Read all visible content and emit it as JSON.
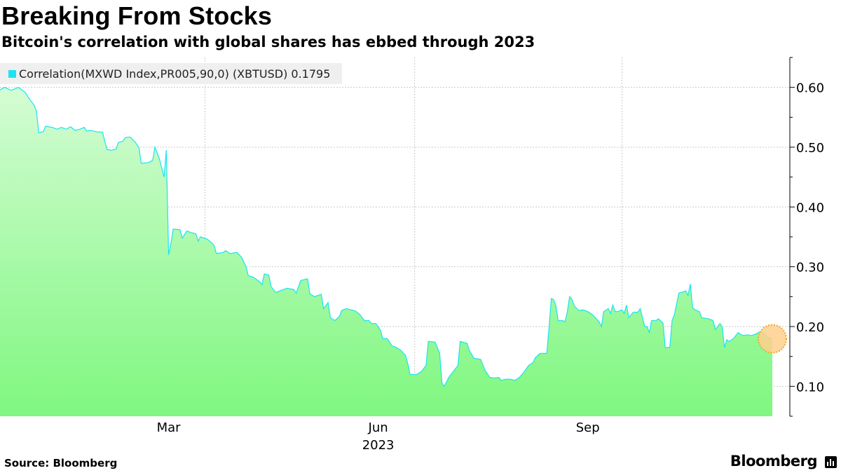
{
  "header": {
    "title": "Breaking From Stocks",
    "subtitle": "Bitcoin's correlation with global shares has ebbed through 2023"
  },
  "legend": {
    "label": "Correlation(MXWD Index,PR005,90,0) (XBTUSD) 0.1795",
    "swatch_color": "#1ee3f3"
  },
  "footer": {
    "source": "Source:  Bloomberg",
    "brand": "Bloomberg"
  },
  "colors": {
    "line": "#19e4f2",
    "area_top": "#d4fcd4",
    "area_bottom": "#7ff77f",
    "grid": "#c9c9c9",
    "marker_fill": "#ffcf8c",
    "marker_stroke": "#f5a623"
  },
  "chart_data": {
    "type": "area",
    "title": "Breaking From Stocks",
    "subtitle": "Bitcoin's correlation with global shares has ebbed through 2023",
    "series_name": "Correlation(MXWD Index,PR005,90,0) (XBTUSD)",
    "last_value": 0.1795,
    "x_unit": "days since 2023-01-01",
    "xlim": [
      0,
      339
    ],
    "ylim": [
      0.05,
      0.65
    ],
    "yticks": [
      0.1,
      0.2,
      0.3,
      0.4,
      0.5,
      0.6
    ],
    "ytick_labels": [
      "0.10",
      "0.20",
      "0.30",
      "0.40",
      "0.50",
      "0.60"
    ],
    "y_axis_side": "right",
    "xticks": [
      {
        "label": "Mar",
        "day": 74,
        "grid": false
      },
      {
        "label": "Jun",
        "day": 166,
        "grid": false
      },
      {
        "label": "Sep",
        "day": 258,
        "grid": false
      }
    ],
    "x_gridlines_days": [
      90,
      182,
      273
    ],
    "x_year_label": "2023",
    "grid": true,
    "points": [
      [
        0,
        0.596
      ],
      [
        2,
        0.6
      ],
      [
        5,
        0.595
      ],
      [
        8,
        0.6
      ],
      [
        11,
        0.592
      ],
      [
        13,
        0.58
      ],
      [
        15,
        0.57
      ],
      [
        16,
        0.56
      ],
      [
        17,
        0.524
      ],
      [
        19,
        0.526
      ],
      [
        20,
        0.535
      ],
      [
        23,
        0.533
      ],
      [
        25,
        0.53
      ],
      [
        27,
        0.533
      ],
      [
        29,
        0.53
      ],
      [
        31,
        0.534
      ],
      [
        33,
        0.528
      ],
      [
        35,
        0.53
      ],
      [
        37,
        0.533
      ],
      [
        38,
        0.527
      ],
      [
        40,
        0.528
      ],
      [
        42,
        0.526
      ],
      [
        45,
        0.525
      ],
      [
        46,
        0.51
      ],
      [
        47,
        0.496
      ],
      [
        49,
        0.495
      ],
      [
        51,
        0.497
      ],
      [
        52,
        0.508
      ],
      [
        54,
        0.51
      ],
      [
        55,
        0.516
      ],
      [
        57,
        0.517
      ],
      [
        59,
        0.51
      ],
      [
        60,
        0.505
      ],
      [
        61,
        0.499
      ],
      [
        62,
        0.473
      ],
      [
        65,
        0.474
      ],
      [
        67,
        0.478
      ],
      [
        68,
        0.5
      ],
      [
        70,
        0.48
      ],
      [
        72,
        0.45
      ],
      [
        73,
        0.495
      ],
      [
        74,
        0.32
      ],
      [
        75,
        0.338
      ],
      [
        76,
        0.363
      ],
      [
        79,
        0.362
      ],
      [
        80,
        0.348
      ],
      [
        82,
        0.36
      ],
      [
        84,
        0.357
      ],
      [
        86,
        0.355
      ],
      [
        87,
        0.343
      ],
      [
        88,
        0.35
      ],
      [
        91,
        0.346
      ],
      [
        93,
        0.34
      ],
      [
        94,
        0.335
      ],
      [
        95,
        0.322
      ],
      [
        98,
        0.324
      ],
      [
        99,
        0.327
      ],
      [
        101,
        0.322
      ],
      [
        104,
        0.324
      ],
      [
        106,
        0.316
      ],
      [
        108,
        0.3
      ],
      [
        109,
        0.285
      ],
      [
        111,
        0.283
      ],
      [
        114,
        0.275
      ],
      [
        115,
        0.27
      ],
      [
        116,
        0.288
      ],
      [
        118,
        0.286
      ],
      [
        119,
        0.267
      ],
      [
        121,
        0.257
      ],
      [
        123,
        0.26
      ],
      [
        126,
        0.264
      ],
      [
        129,
        0.262
      ],
      [
        130,
        0.256
      ],
      [
        132,
        0.277
      ],
      [
        135,
        0.28
      ],
      [
        136,
        0.255
      ],
      [
        138,
        0.25
      ],
      [
        141,
        0.254
      ],
      [
        142,
        0.23
      ],
      [
        144,
        0.24
      ],
      [
        145,
        0.215
      ],
      [
        147,
        0.21
      ],
      [
        149,
        0.217
      ],
      [
        150,
        0.227
      ],
      [
        152,
        0.23
      ],
      [
        154,
        0.228
      ],
      [
        156,
        0.226
      ],
      [
        158,
        0.22
      ],
      [
        160,
        0.21
      ],
      [
        162,
        0.21
      ],
      [
        163,
        0.205
      ],
      [
        165,
        0.205
      ],
      [
        167,
        0.194
      ],
      [
        168,
        0.18
      ],
      [
        170,
        0.18
      ],
      [
        172,
        0.168
      ],
      [
        174,
        0.165
      ],
      [
        176,
        0.16
      ],
      [
        178,
        0.152
      ],
      [
        179,
        0.138
      ],
      [
        180,
        0.12
      ],
      [
        183,
        0.12
      ],
      [
        185,
        0.125
      ],
      [
        187,
        0.135
      ],
      [
        188,
        0.175
      ],
      [
        191,
        0.174
      ],
      [
        193,
        0.155
      ],
      [
        194,
        0.106
      ],
      [
        195,
        0.1
      ],
      [
        197,
        0.115
      ],
      [
        199,
        0.125
      ],
      [
        201,
        0.135
      ],
      [
        202,
        0.175
      ],
      [
        205,
        0.172
      ],
      [
        206,
        0.16
      ],
      [
        208,
        0.147
      ],
      [
        211,
        0.145
      ],
      [
        213,
        0.126
      ],
      [
        215,
        0.115
      ],
      [
        217,
        0.114
      ],
      [
        219,
        0.115
      ],
      [
        220,
        0.11
      ],
      [
        222,
        0.112
      ],
      [
        224,
        0.112
      ],
      [
        226,
        0.11
      ],
      [
        228,
        0.115
      ],
      [
        230,
        0.124
      ],
      [
        232,
        0.135
      ],
      [
        234,
        0.14
      ],
      [
        235,
        0.148
      ],
      [
        237,
        0.155
      ],
      [
        240,
        0.155
      ],
      [
        241,
        0.198
      ],
      [
        242,
        0.247
      ],
      [
        243,
        0.245
      ],
      [
        244,
        0.235
      ],
      [
        245,
        0.21
      ],
      [
        247,
        0.21
      ],
      [
        248,
        0.208
      ],
      [
        249,
        0.224
      ],
      [
        250,
        0.25
      ],
      [
        251,
        0.246
      ],
      [
        252,
        0.235
      ],
      [
        254,
        0.227
      ],
      [
        256,
        0.228
      ],
      [
        258,
        0.225
      ],
      [
        260,
        0.22
      ],
      [
        262,
        0.212
      ],
      [
        263,
        0.208
      ],
      [
        264,
        0.2
      ],
      [
        265,
        0.225
      ],
      [
        267,
        0.23
      ],
      [
        268,
        0.222
      ],
      [
        269,
        0.236
      ],
      [
        270,
        0.225
      ],
      [
        271,
        0.225
      ],
      [
        273,
        0.228
      ],
      [
        274,
        0.222
      ],
      [
        275,
        0.236
      ],
      [
        276,
        0.215
      ],
      [
        278,
        0.224
      ],
      [
        280,
        0.224
      ],
      [
        281,
        0.23
      ],
      [
        283,
        0.2
      ],
      [
        284,
        0.2
      ],
      [
        285,
        0.19
      ],
      [
        286,
        0.21
      ],
      [
        288,
        0.21
      ],
      [
        289,
        0.213
      ],
      [
        291,
        0.206
      ],
      [
        292,
        0.165
      ],
      [
        294,
        0.165
      ],
      [
        295,
        0.21
      ],
      [
        296,
        0.22
      ],
      [
        298,
        0.256
      ],
      [
        300,
        0.258
      ],
      [
        301,
        0.26
      ],
      [
        302,
        0.252
      ],
      [
        303,
        0.271
      ],
      [
        304,
        0.232
      ],
      [
        305,
        0.228
      ],
      [
        307,
        0.225
      ],
      [
        308,
        0.215
      ],
      [
        311,
        0.213
      ],
      [
        313,
        0.21
      ],
      [
        314,
        0.195
      ],
      [
        316,
        0.205
      ],
      [
        317,
        0.2
      ],
      [
        318,
        0.165
      ],
      [
        319,
        0.178
      ],
      [
        320,
        0.175
      ],
      [
        322,
        0.18
      ],
      [
        324,
        0.19
      ],
      [
        326,
        0.185
      ],
      [
        328,
        0.186
      ],
      [
        330,
        0.185
      ],
      [
        332,
        0.188
      ],
      [
        334,
        0.192
      ],
      [
        335,
        0.19
      ],
      [
        337,
        0.182
      ],
      [
        339,
        0.1795
      ]
    ],
    "highlight_last_point": true
  }
}
